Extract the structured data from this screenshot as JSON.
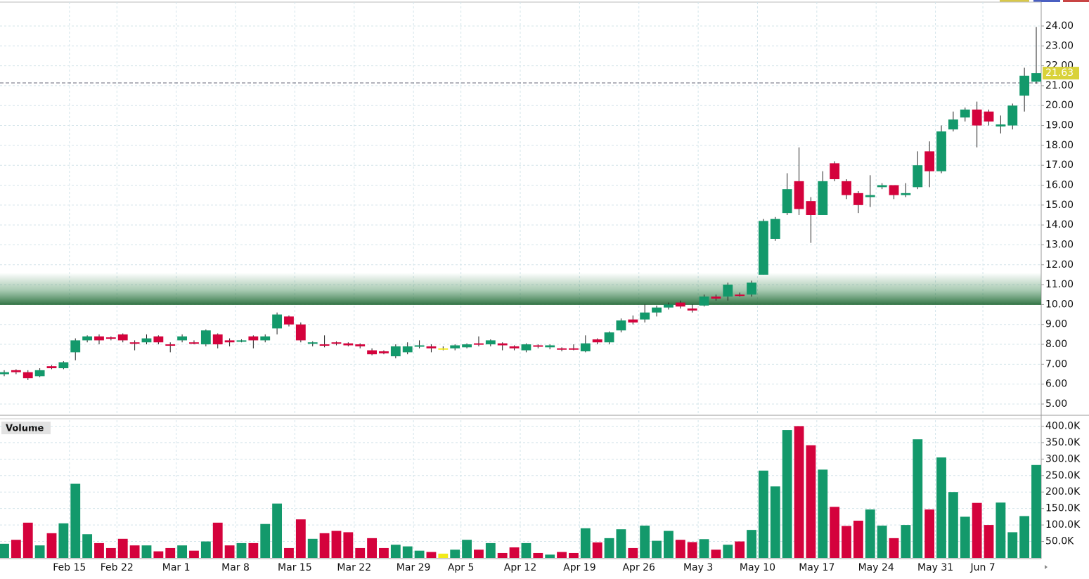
{
  "chart_data": {
    "type": "candlestick",
    "categories": [
      null,
      null,
      null,
      null,
      null,
      null,
      "Feb 15",
      null,
      null,
      null,
      "Feb 22",
      null,
      null,
      null,
      null,
      "Mar 1",
      null,
      null,
      null,
      null,
      "Mar 8",
      null,
      null,
      null,
      null,
      "Mar 15",
      null,
      null,
      null,
      null,
      "Mar 22",
      null,
      null,
      null,
      null,
      "Mar 29",
      null,
      null,
      null,
      "Apr 5",
      null,
      null,
      null,
      null,
      "Apr 12",
      null,
      null,
      null,
      null,
      "Apr 19",
      null,
      null,
      null,
      null,
      "Apr 26",
      null,
      null,
      null,
      null,
      "May 3",
      null,
      null,
      null,
      null,
      "May 10",
      null,
      null,
      null,
      null,
      "May 17",
      null,
      null,
      null,
      null,
      "May 24",
      null,
      null,
      null,
      null,
      "May 31",
      null,
      null,
      null,
      "Jun 7",
      null,
      null,
      null,
      null
    ],
    "open": [
      6.5,
      6.7,
      6.6,
      6.4,
      6.9,
      6.8,
      7.6,
      8.2,
      8.4,
      8.35,
      8.5,
      8.1,
      8.1,
      8.4,
      8.0,
      8.2,
      8.1,
      8.0,
      8.5,
      8.2,
      8.15,
      8.4,
      8.2,
      8.8,
      9.4,
      9.0,
      8.05,
      8.0,
      8.1,
      8.05,
      8.0,
      7.7,
      7.65,
      7.4,
      7.6,
      7.9,
      7.9,
      7.8,
      7.8,
      7.85,
      8.05,
      8.0,
      8.05,
      7.9,
      7.7,
      7.95,
      7.85,
      7.8,
      7.8,
      7.65,
      8.25,
      8.1,
      8.7,
      9.25,
      9.25,
      9.6,
      9.85,
      10.1,
      9.8,
      9.95,
      10.4,
      10.4,
      10.5,
      10.5,
      11.5,
      13.3,
      14.6,
      16.2,
      15.2,
      14.5,
      17.1,
      16.2,
      15.6,
      15.4,
      15.9,
      16.0,
      15.5,
      15.9,
      17.7,
      16.7,
      18.8,
      19.4,
      19.8,
      19.7,
      18.95,
      19.0,
      20.5,
      21.2
    ],
    "high": [
      6.7,
      6.75,
      6.7,
      6.8,
      6.95,
      7.15,
      8.3,
      8.45,
      8.5,
      8.4,
      8.55,
      8.2,
      8.5,
      8.45,
      8.1,
      8.5,
      8.2,
      8.75,
      8.55,
      8.3,
      8.25,
      8.45,
      8.5,
      9.6,
      9.45,
      9.1,
      8.15,
      8.45,
      8.15,
      8.1,
      8.05,
      7.8,
      7.7,
      8.0,
      8.1,
      8.2,
      8.0,
      7.9,
      8.0,
      8.05,
      8.4,
      8.25,
      8.1,
      7.95,
      8.05,
      8.0,
      8.0,
      7.85,
      8.0,
      8.45,
      8.3,
      8.65,
      9.3,
      9.45,
      10.0,
      9.95,
      10.1,
      10.2,
      10.0,
      10.5,
      10.5,
      11.1,
      10.6,
      11.2,
      14.3,
      14.4,
      16.6,
      17.9,
      15.4,
      16.7,
      17.2,
      16.3,
      15.7,
      16.5,
      16.1,
      16.0,
      16.1,
      17.7,
      18.2,
      19.0,
      19.7,
      19.9,
      20.2,
      19.8,
      19.5,
      20.1,
      21.9,
      23.95
    ],
    "low": [
      6.4,
      6.5,
      6.2,
      6.35,
      6.75,
      6.75,
      7.2,
      8.1,
      8.0,
      8.2,
      8.1,
      7.7,
      8.0,
      8.0,
      7.6,
      8.1,
      8.0,
      7.9,
      7.8,
      7.9,
      8.1,
      7.8,
      8.1,
      8.5,
      8.9,
      8.1,
      7.9,
      7.85,
      7.95,
      7.9,
      7.8,
      7.45,
      7.5,
      7.3,
      7.5,
      7.8,
      7.6,
      7.7,
      7.7,
      7.8,
      7.9,
      7.9,
      7.7,
      7.7,
      7.6,
      7.8,
      7.75,
      7.65,
      7.7,
      7.6,
      8.0,
      8.0,
      8.6,
      9.0,
      9.1,
      9.4,
      9.75,
      9.8,
      9.6,
      9.9,
      10.2,
      10.2,
      10.4,
      10.4,
      11.5,
      13.2,
      14.5,
      14.5,
      13.1,
      14.5,
      16.2,
      15.3,
      14.6,
      14.9,
      15.8,
      15.3,
      15.4,
      15.8,
      15.9,
      16.6,
      18.7,
      19.2,
      17.9,
      19.0,
      18.6,
      18.8,
      19.7,
      21.1
    ],
    "close": [
      6.6,
      6.6,
      6.3,
      6.7,
      6.8,
      7.1,
      8.2,
      8.4,
      8.2,
      8.3,
      8.2,
      8.05,
      8.3,
      8.1,
      7.95,
      8.4,
      8.05,
      8.7,
      8.0,
      8.1,
      8.2,
      8.2,
      8.4,
      9.5,
      9.0,
      8.2,
      8.1,
      7.95,
      8.05,
      7.95,
      7.9,
      7.5,
      7.55,
      7.9,
      7.9,
      7.95,
      7.8,
      7.8,
      7.95,
      8.0,
      8.0,
      8.2,
      7.95,
      7.8,
      8.0,
      7.9,
      7.95,
      7.75,
      7.75,
      8.05,
      8.1,
      8.6,
      9.2,
      9.1,
      9.6,
      9.85,
      10.0,
      9.9,
      9.7,
      10.4,
      10.3,
      11.0,
      10.45,
      11.1,
      14.2,
      14.3,
      15.8,
      14.8,
      14.5,
      16.2,
      16.3,
      15.5,
      15.0,
      15.5,
      16.0,
      15.5,
      15.6,
      17.0,
      16.7,
      18.7,
      19.3,
      19.8,
      19.0,
      19.2,
      19.05,
      20.0,
      21.5,
      21.63
    ],
    "up_color": "#13996b",
    "down_color": "#d4023c",
    "flat_color": "#f2ea1a",
    "wick_color": "#222222",
    "ylim": [
      4.47,
      25.2
    ],
    "yticks": [
      {
        "value": 5,
        "label": "5.00"
      },
      {
        "value": 6,
        "label": "6.00"
      },
      {
        "value": 7,
        "label": "7.00"
      },
      {
        "value": 8,
        "label": "8.00"
      },
      {
        "value": 9,
        "label": "9.00"
      },
      {
        "value": 10,
        "label": "10.00"
      },
      {
        "value": 11,
        "label": "11.00"
      },
      {
        "value": 12,
        "label": "12.00"
      },
      {
        "value": 13,
        "label": "13.00"
      },
      {
        "value": 14,
        "label": "14.00"
      },
      {
        "value": 15,
        "label": "15.00"
      },
      {
        "value": 16,
        "label": "16.00"
      },
      {
        "value": 17,
        "label": "17.00"
      },
      {
        "value": 18,
        "label": "18.00"
      },
      {
        "value": 19,
        "label": "19.00"
      },
      {
        "value": 20,
        "label": "20.00"
      },
      {
        "value": 21,
        "label": "21.00"
      },
      {
        "value": 22,
        "label": "22.00"
      },
      {
        "value": 23,
        "label": "23.00"
      },
      {
        "value": 24,
        "label": "24.00"
      }
    ],
    "reference_line": 21.14,
    "highlight_zone": [
      10,
      11.6
    ],
    "grid": true,
    "volume": {
      "title": "Volume",
      "values": [
        43000,
        55000,
        107000,
        38000,
        75000,
        105000,
        225000,
        72000,
        45000,
        30000,
        58000,
        38000,
        38000,
        20000,
        30000,
        38000,
        22000,
        50000,
        107000,
        38000,
        45000,
        45000,
        103000,
        165000,
        30000,
        117000,
        58000,
        75000,
        82000,
        78000,
        30000,
        60000,
        30000,
        40000,
        35000,
        22000,
        18000,
        13000,
        25000,
        55000,
        25000,
        45000,
        15000,
        32000,
        45000,
        15000,
        10000,
        18000,
        15000,
        90000,
        47000,
        60000,
        87000,
        30000,
        98000,
        52000,
        82000,
        55000,
        48000,
        57000,
        25000,
        40000,
        50000,
        85000,
        265000,
        217000,
        388000,
        400000,
        342000,
        268000,
        155000,
        97000,
        113000,
        147000,
        98000,
        60000,
        100000,
        360000,
        147000,
        305000,
        200000,
        125000,
        167000,
        100000,
        168000,
        78000,
        127000,
        282000
      ],
      "ylim": [
        0,
        418000
      ],
      "yticks": [
        {
          "value": 50000,
          "label": "50.0K"
        },
        {
          "value": 100000,
          "label": "100.0K"
        },
        {
          "value": 150000,
          "label": "150.0K"
        },
        {
          "value": 200000,
          "label": "200.0K"
        },
        {
          "value": 250000,
          "label": "250.0K"
        },
        {
          "value": 300000,
          "label": "300.0K"
        },
        {
          "value": 350000,
          "label": "350.0K"
        },
        {
          "value": 400000,
          "label": "400.0K"
        }
      ]
    }
  }
}
